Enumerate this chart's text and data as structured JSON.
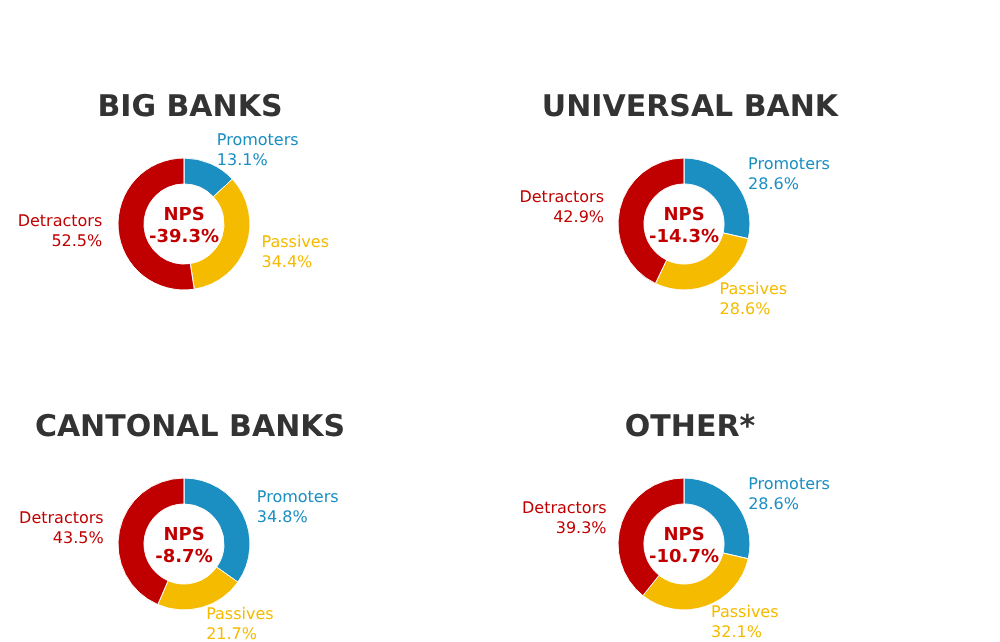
{
  "chart_data": [
    {
      "type": "donut",
      "title": "BIG BANKS",
      "categories": [
        "Promoters",
        "Passives",
        "Detractors"
      ],
      "values": [
        13.1,
        34.4,
        52.5
      ],
      "colors": [
        "#1b8ec2",
        "#f5bb00",
        "#c00000"
      ],
      "value_labels": [
        "13.1%",
        "34.4%",
        "52.5%"
      ],
      "annotations": [
        "NPS",
        "-39.3%"
      ]
    },
    {
      "type": "donut",
      "title": "UNIVERSAL BANK",
      "categories": [
        "Promoters",
        "Passives",
        "Detractors"
      ],
      "values": [
        28.6,
        28.6,
        42.9
      ],
      "colors": [
        "#1b8ec2",
        "#f5bb00",
        "#c00000"
      ],
      "value_labels": [
        "28.6%",
        "28.6%",
        "42.9%"
      ],
      "annotations": [
        "NPS",
        "-14.3%"
      ]
    },
    {
      "type": "donut",
      "title": "CANTONAL BANKS",
      "categories": [
        "Promoters",
        "Passives",
        "Detractors"
      ],
      "values": [
        34.8,
        21.7,
        43.5
      ],
      "colors": [
        "#1b8ec2",
        "#f5bb00",
        "#c00000"
      ],
      "value_labels": [
        "34.8%",
        "21.7%",
        "43.5%"
      ],
      "annotations": [
        "NPS",
        "-8.7%"
      ]
    },
    {
      "type": "donut",
      "title": "OTHER*",
      "categories": [
        "Promoters",
        "Passives",
        "Detractors"
      ],
      "values": [
        28.6,
        32.1,
        39.3
      ],
      "colors": [
        "#1b8ec2",
        "#f5bb00",
        "#c00000"
      ],
      "value_labels": [
        "28.6%",
        "32.1%",
        "39.3%"
      ],
      "annotations": [
        "NPS",
        "-10.7%"
      ]
    }
  ]
}
